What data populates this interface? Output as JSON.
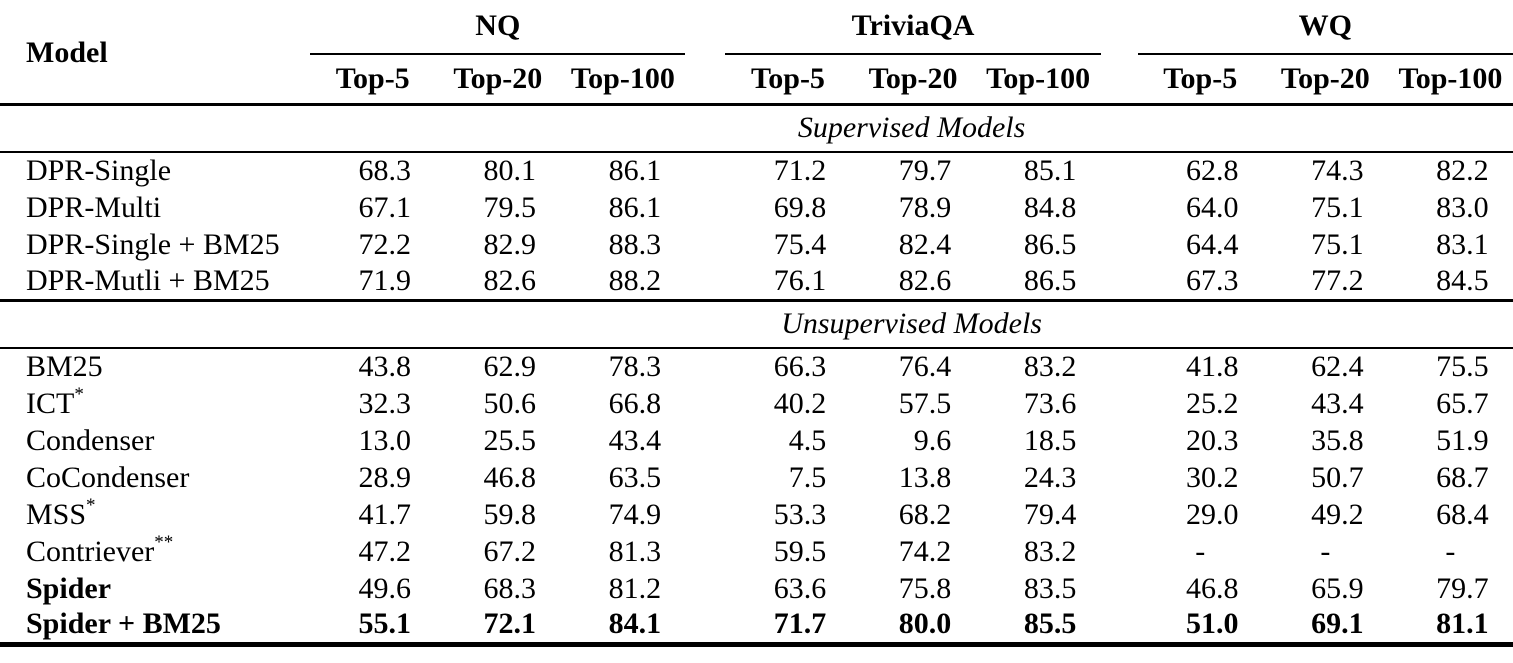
{
  "table": {
    "model_header": "Model",
    "groups": [
      {
        "label": "NQ",
        "columns": [
          "Top-5",
          "Top-20",
          "Top-100"
        ]
      },
      {
        "label": "TriviaQA",
        "columns": [
          "Top-5",
          "Top-20",
          "Top-100"
        ]
      },
      {
        "label": "WQ",
        "columns": [
          "Top-5",
          "Top-20",
          "Top-100"
        ]
      }
    ],
    "text_color": "#000000",
    "background_color": "#ffffff",
    "sections": [
      {
        "title": "Supervised Models",
        "rows": [
          {
            "model": "DPR-Single",
            "sup": "",
            "bold_model": false,
            "bold_values": false,
            "values": [
              "68.3",
              "80.1",
              "86.1",
              "71.2",
              "79.7",
              "85.1",
              "62.8",
              "74.3",
              "82.2"
            ]
          },
          {
            "model": "DPR-Multi",
            "sup": "",
            "bold_model": false,
            "bold_values": false,
            "values": [
              "67.1",
              "79.5",
              "86.1",
              "69.8",
              "78.9",
              "84.8",
              "64.0",
              "75.1",
              "83.0"
            ]
          },
          {
            "model": "DPR-Single + BM25",
            "sup": "",
            "bold_model": false,
            "bold_values": false,
            "values": [
              "72.2",
              "82.9",
              "88.3",
              "75.4",
              "82.4",
              "86.5",
              "64.4",
              "75.1",
              "83.1"
            ]
          },
          {
            "model": "DPR-Mutli + BM25",
            "sup": "",
            "bold_model": false,
            "bold_values": false,
            "values": [
              "71.9",
              "82.6",
              "88.2",
              "76.1",
              "82.6",
              "86.5",
              "67.3",
              "77.2",
              "84.5"
            ]
          }
        ]
      },
      {
        "title": "Unsupervised Models",
        "rows": [
          {
            "model": "BM25",
            "sup": "",
            "bold_model": false,
            "bold_values": false,
            "values": [
              "43.8",
              "62.9",
              "78.3",
              "66.3",
              "76.4",
              "83.2",
              "41.8",
              "62.4",
              "75.5"
            ]
          },
          {
            "model": "ICT",
            "sup": "*",
            "bold_model": false,
            "bold_values": false,
            "values": [
              "32.3",
              "50.6",
              "66.8",
              "40.2",
              "57.5",
              "73.6",
              "25.2",
              "43.4",
              "65.7"
            ]
          },
          {
            "model": "Condenser",
            "sup": "",
            "bold_model": false,
            "bold_values": false,
            "values": [
              "13.0",
              "25.5",
              "43.4",
              "4.5",
              "9.6",
              "18.5",
              "20.3",
              "35.8",
              "51.9"
            ]
          },
          {
            "model": "CoCondenser",
            "sup": "",
            "bold_model": false,
            "bold_values": false,
            "values": [
              "28.9",
              "46.8",
              "63.5",
              "7.5",
              "13.8",
              "24.3",
              "30.2",
              "50.7",
              "68.7"
            ]
          },
          {
            "model": "MSS",
            "sup": "*",
            "bold_model": false,
            "bold_values": false,
            "values": [
              "41.7",
              "59.8",
              "74.9",
              "53.3",
              "68.2",
              "79.4",
              "29.0",
              "49.2",
              "68.4"
            ]
          },
          {
            "model": "Contriever",
            "sup": "**",
            "bold_model": false,
            "bold_values": false,
            "values": [
              "47.2",
              "67.2",
              "81.3",
              "59.5",
              "74.2",
              "83.2",
              "-",
              "-",
              "-"
            ]
          },
          {
            "model": "Spider",
            "sup": "",
            "bold_model": true,
            "bold_values": false,
            "values": [
              "49.6",
              "68.3",
              "81.2",
              "63.6",
              "75.8",
              "83.5",
              "46.8",
              "65.9",
              "79.7"
            ]
          },
          {
            "model": "Spider + BM25",
            "sup": "",
            "bold_model": true,
            "bold_values": true,
            "values": [
              "55.1",
              "72.1",
              "84.1",
              "71.7",
              "80.0",
              "85.5",
              "51.0",
              "69.1",
              "81.1"
            ]
          }
        ]
      }
    ]
  }
}
